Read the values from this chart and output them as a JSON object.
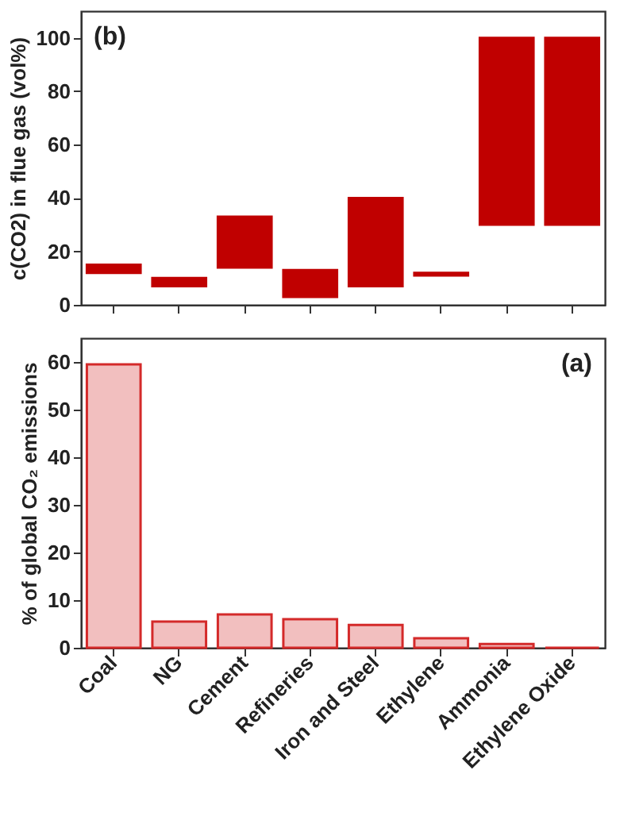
{
  "chart_data": [
    {
      "type": "bar",
      "categories": [
        null,
        null,
        null,
        null,
        null,
        null,
        null,
        null
      ],
      "base": [
        12,
        7,
        14,
        3,
        7,
        11,
        30,
        30
      ],
      "values": [
        3,
        3,
        19,
        10,
        33,
        1,
        70,
        70
      ],
      "color": "#c00000",
      "ylim": [
        0,
        110
      ],
      "yticks": [
        0,
        20,
        40,
        60,
        80,
        100
      ],
      "ylabel": "c(CO2) in flue gas (vol%)",
      "annotations": [
        "(b)"
      ],
      "tick_labels": "y"
    },
    {
      "type": "bar",
      "categories": [
        "Coal",
        "NG",
        "Cement",
        "Refineries",
        "Iron and Steel",
        "Ethylene",
        "Ammonia",
        "Ethylene Oxide"
      ],
      "values": [
        59.5,
        5.5,
        7,
        6,
        4.8,
        2,
        0.8,
        0
      ],
      "color": "#d42a2a",
      "ylim": [
        0,
        65
      ],
      "yticks": [
        0,
        10,
        20,
        30,
        40,
        50,
        60
      ],
      "ylabel": "% of global CO₂ emissions",
      "annotations": [
        "(a)"
      ]
    }
  ]
}
